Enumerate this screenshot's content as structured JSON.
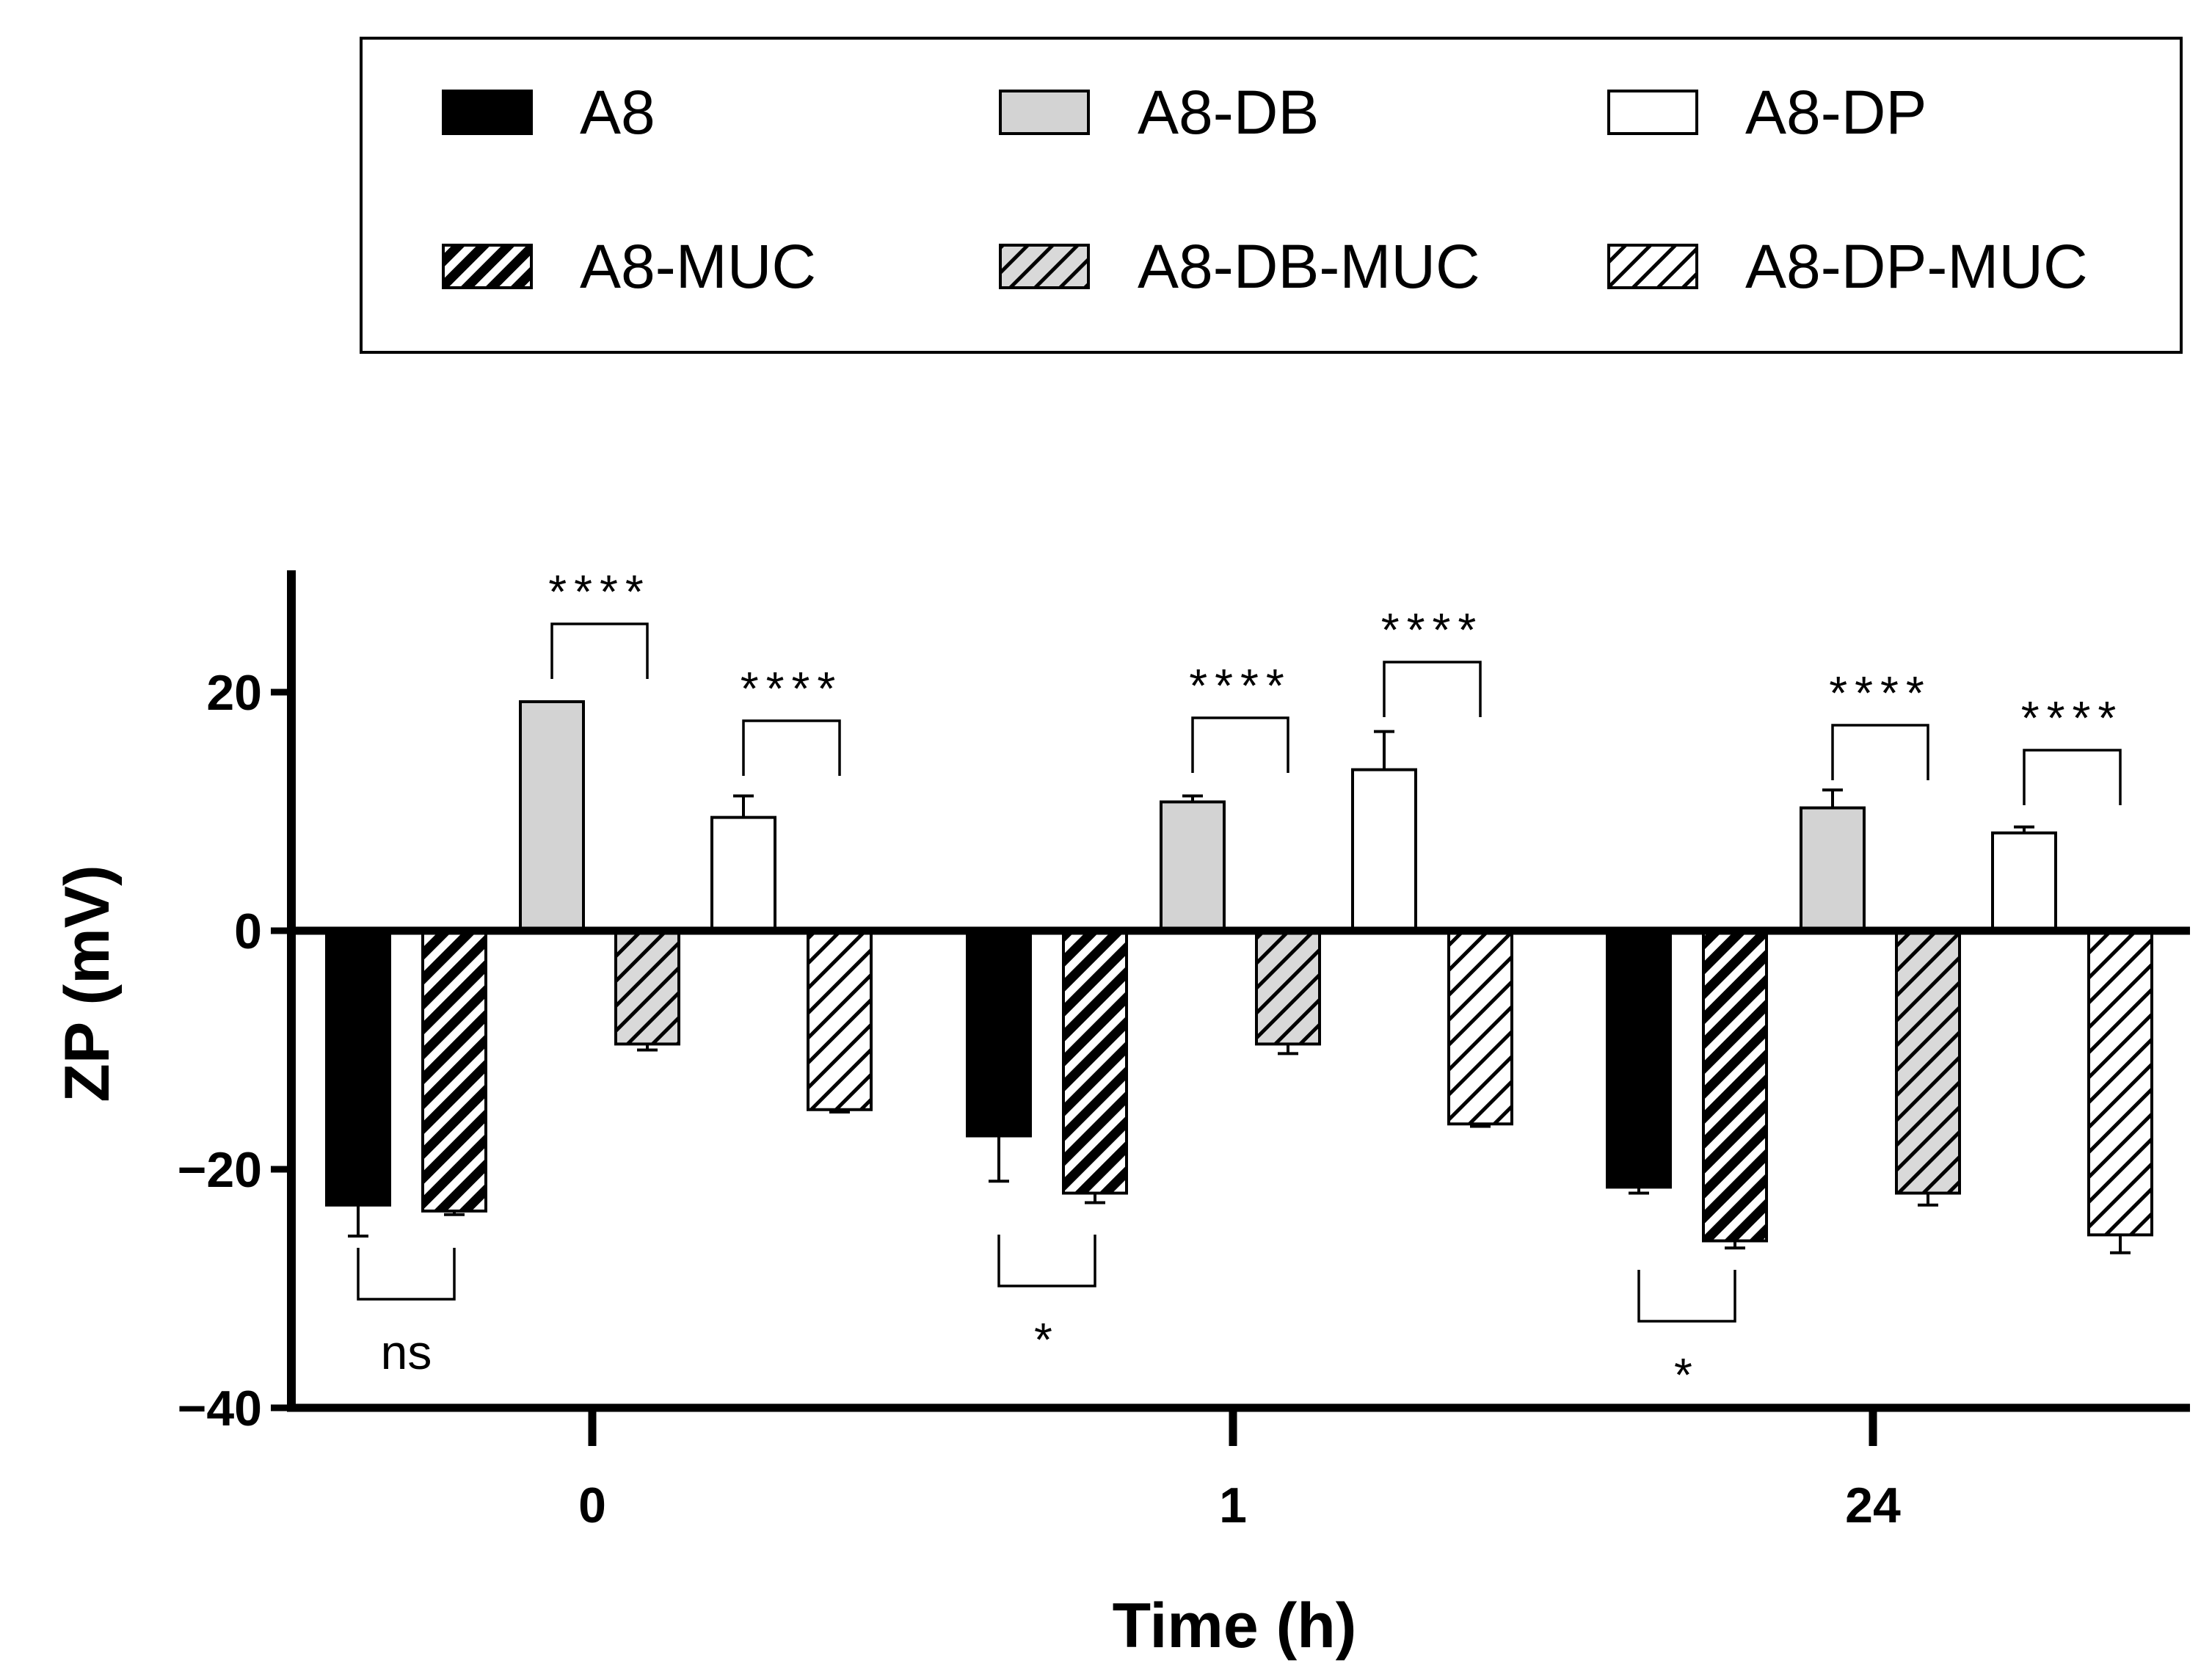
{
  "chart_data": {
    "type": "bar",
    "title": "",
    "xlabel": "Time (h)",
    "ylabel": "ZP (mV)",
    "ylim": [
      -40,
      30
    ],
    "yticks": [
      20,
      0,
      -20,
      -40
    ],
    "ytick_labels": [
      "20",
      "0",
      "−20",
      "−40"
    ],
    "categories": [
      "0",
      "1",
      "24"
    ],
    "legend_position": "top",
    "series": [
      {
        "name": "A8",
        "fill": "#000000",
        "hatch": false,
        "values": [
          -23,
          -17.2,
          -21.5
        ],
        "errors": [
          2.6,
          3.8,
          0.5
        ]
      },
      {
        "name": "A8-MUC",
        "fill": "#000000",
        "hatch": true,
        "values": [
          -23.5,
          -22,
          -26
        ],
        "errors": [
          0.3,
          0.8,
          0.6
        ]
      },
      {
        "name": "A8-DB",
        "fill": "#d3d3d3",
        "hatch": false,
        "values": [
          19.2,
          10.8,
          10.3
        ],
        "errors": [
          0,
          0.5,
          1.5
        ]
      },
      {
        "name": "A8-DB-MUC",
        "fill": "#bdbdbd",
        "hatch": true,
        "values": [
          -9.5,
          -9.5,
          -22
        ],
        "errors": [
          0.5,
          0.8,
          1.0
        ]
      },
      {
        "name": "A8-DP",
        "fill": "#ffffff",
        "hatch": false,
        "values": [
          9.5,
          13.5,
          8.2
        ],
        "errors": [
          1.8,
          3.2,
          0.5
        ]
      },
      {
        "name": "A8-DP-MUC",
        "fill": "#ffffff",
        "hatch": true,
        "values": [
          -15,
          -16.2,
          -25.5
        ],
        "errors": [
          0.2,
          0.2,
          1.5
        ]
      }
    ],
    "legend_rows": [
      [
        "A8",
        "A8-DB",
        "A8-DP"
      ],
      [
        "A8-MUC",
        "A8-DB-MUC",
        "A8-DP-MUC"
      ]
    ],
    "annotations": [
      {
        "group": 0,
        "from": "A8",
        "to": "A8-MUC",
        "label": "ns",
        "side": "below"
      },
      {
        "group": 0,
        "from": "A8-DB",
        "to": "A8-DB-MUC",
        "label": "****",
        "side": "above"
      },
      {
        "group": 0,
        "from": "A8-DP",
        "to": "A8-DP-MUC",
        "label": "****",
        "side": "above"
      },
      {
        "group": 1,
        "from": "A8",
        "to": "A8-MUC",
        "label": "*",
        "side": "below"
      },
      {
        "group": 1,
        "from": "A8-DB",
        "to": "A8-DB-MUC",
        "label": "****",
        "side": "above"
      },
      {
        "group": 1,
        "from": "A8-DP",
        "to": "A8-DP-MUC",
        "label": "****",
        "side": "above"
      },
      {
        "group": 2,
        "from": "A8",
        "to": "A8-MUC",
        "label": "*",
        "side": "below"
      },
      {
        "group": 2,
        "from": "A8-DB",
        "to": "A8-DB-MUC",
        "label": "****",
        "side": "above"
      },
      {
        "group": 2,
        "from": "A8-DP",
        "to": "A8-DP-MUC",
        "label": "****",
        "side": "above"
      }
    ]
  }
}
